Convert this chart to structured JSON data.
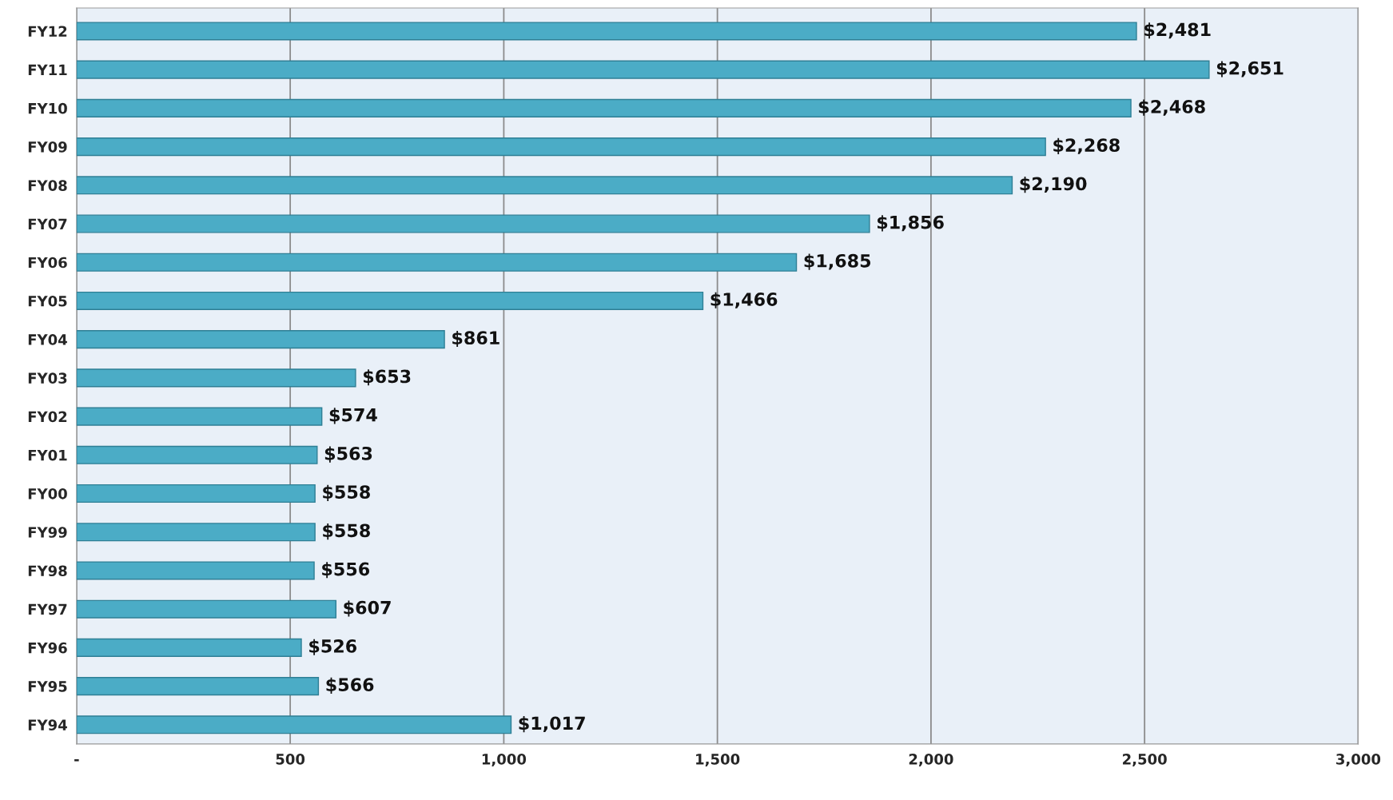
{
  "chart_data": {
    "type": "bar",
    "orientation": "horizontal",
    "categories": [
      "FY12",
      "FY11",
      "FY10",
      "FY09",
      "FY08",
      "FY07",
      "FY06",
      "FY05",
      "FY04",
      "FY03",
      "FY02",
      "FY01",
      "FY00",
      "FY99",
      "FY98",
      "FY97",
      "FY96",
      "FY95",
      "FY94"
    ],
    "values": [
      2481,
      2651,
      2468,
      2268,
      2190,
      1856,
      1685,
      1466,
      861,
      653,
      574,
      563,
      558,
      558,
      556,
      607,
      526,
      566,
      1017
    ],
    "value_labels": [
      "$2,481",
      "$2,651",
      "$2,468",
      "$2,268",
      "$2,190",
      "$1,856",
      "$1,685",
      "$1,466",
      "$861",
      "$653",
      "$574",
      "$563",
      "$558",
      "$558",
      "$556",
      "$607",
      "$526",
      "$566",
      "$1,017"
    ],
    "color": "#4bacc6",
    "xlim": [
      0,
      3000
    ],
    "xticks": [
      {
        "value": 0,
        "label": "-"
      },
      500,
      {
        "value": 1000,
        "label": "1,000"
      },
      {
        "value": 1500,
        "label": "1,500"
      },
      {
        "value": 2000,
        "label": "2,000"
      },
      {
        "value": 2500,
        "label": "2,500"
      },
      {
        "value": 3000,
        "label": "3,000"
      }
    ],
    "grid": "x"
  }
}
